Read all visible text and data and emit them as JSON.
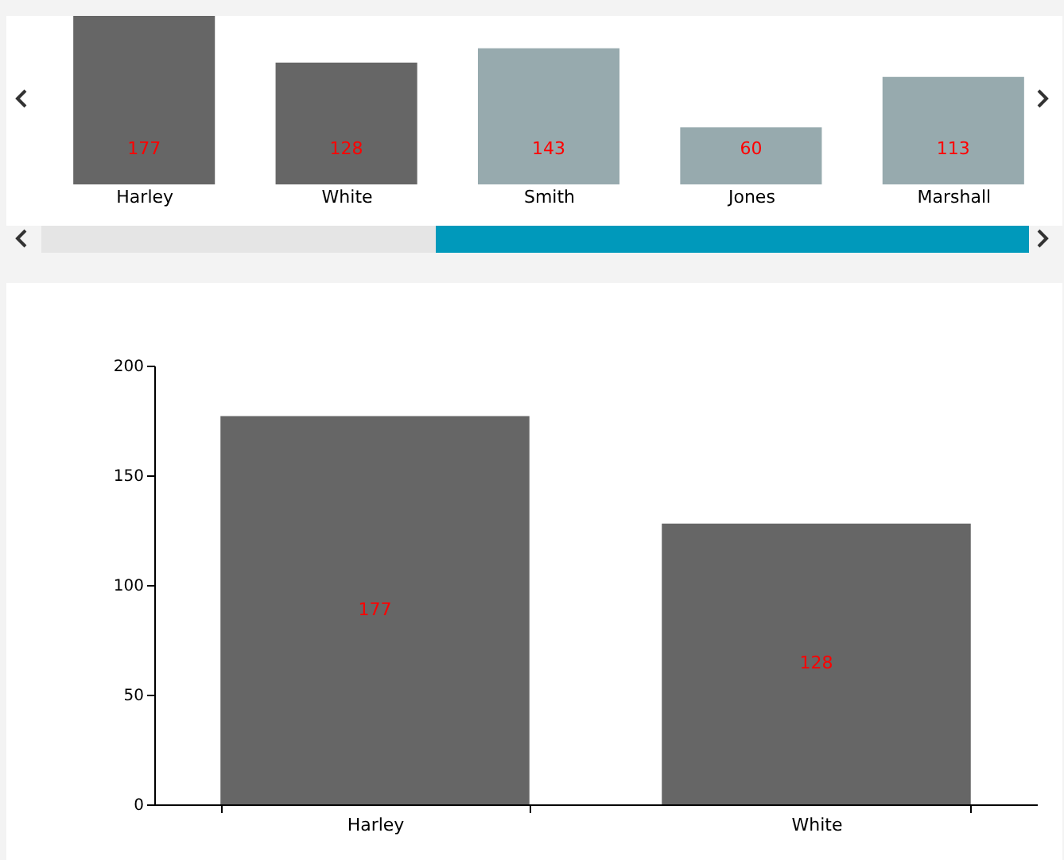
{
  "chart_data": [
    {
      "type": "bar",
      "categories": [
        "Harley",
        "White",
        "Smith",
        "Jones",
        "Marshall"
      ],
      "values": [
        177,
        128,
        143,
        60,
        113
      ],
      "colors": [
        "#666666",
        "#666666",
        "#97aaae",
        "#97aaae",
        "#97aaae"
      ],
      "data_labels": true,
      "tick_labels": "x",
      "grid": false
    },
    {
      "type": "bar",
      "categories": [
        "Harley",
        "White"
      ],
      "values": [
        177,
        128
      ],
      "color": "#666666",
      "data_labels": true,
      "ylim": [
        0,
        200
      ],
      "yticks": [
        0,
        50,
        100,
        150,
        200
      ],
      "grid": false
    }
  ]
}
